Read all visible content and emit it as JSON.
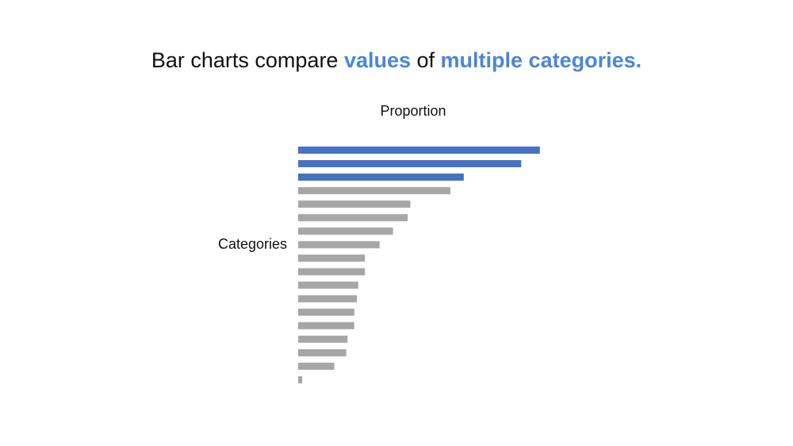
{
  "headline": {
    "part1": "Bar charts compare ",
    "highlight1": "values",
    "part2": " of ",
    "highlight2": "multiple categories."
  },
  "colors": {
    "highlight_text": "#4a86d8",
    "highlight_bar": "#4472c4",
    "other_bar": "#a6a6a6"
  },
  "chart_data": {
    "type": "bar",
    "orientation": "horizontal",
    "xlabel": "Proportion",
    "ylabel": "Categories",
    "grid": false,
    "axes_visible": false,
    "xlim": [
      0,
      0.19
    ],
    "values": [
      0.181,
      0.167,
      0.124,
      0.114,
      0.084,
      0.082,
      0.071,
      0.061,
      0.05,
      0.05,
      0.045,
      0.044,
      0.042,
      0.042,
      0.037,
      0.036,
      0.027,
      0.003
    ],
    "highlighted_count": 3
  }
}
